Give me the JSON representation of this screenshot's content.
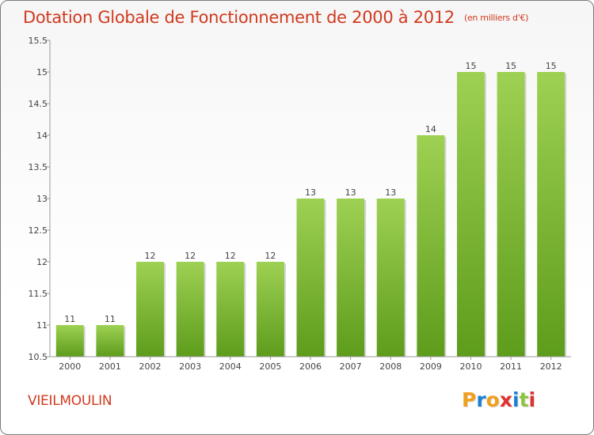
{
  "header": {
    "title": "Dotation Globale de Fonctionnement de 2000 à 2012",
    "unit_note": "(en milliers d'€)"
  },
  "footer": {
    "commune": "VIEILMOULIN",
    "logo_letters": [
      "P",
      "r",
      "o",
      "x",
      "i",
      "t",
      "i"
    ],
    "logo_colors": [
      "#f0a01e",
      "#1e7fd0",
      "#f0a01e",
      "#e03030",
      "#1e7fd0",
      "#8fc43f",
      "#e03030"
    ]
  },
  "colors": {
    "bar_top": "#9ed153",
    "bar_bottom": "#5e9c1c",
    "title": "#d03a1e"
  },
  "chart_data": {
    "type": "bar",
    "title": "Dotation Globale de Fonctionnement de 2000 à 2012",
    "subtitle": "(en milliers d'€)",
    "xlabel": "",
    "ylabel": "",
    "categories": [
      "2000",
      "2001",
      "2002",
      "2003",
      "2004",
      "2005",
      "2006",
      "2007",
      "2008",
      "2009",
      "2010",
      "2011",
      "2012"
    ],
    "values": [
      11,
      11,
      12,
      12,
      12,
      12,
      13,
      13,
      13,
      14,
      15,
      15,
      15
    ],
    "data_labels": [
      "11",
      "11",
      "12",
      "12",
      "12",
      "12",
      "13",
      "13",
      "13",
      "14",
      "15",
      "15",
      "15"
    ],
    "ylim": [
      10.5,
      15.5
    ],
    "yticks": [
      10.5,
      11,
      11.5,
      12,
      12.5,
      13,
      13.5,
      14,
      14.5,
      15,
      15.5
    ],
    "ytick_labels": [
      "10.5",
      "11",
      "11.5",
      "12",
      "12.5",
      "13",
      "13.5",
      "14",
      "14.5",
      "15",
      "15.5"
    ],
    "grid": false,
    "legend": "none"
  }
}
